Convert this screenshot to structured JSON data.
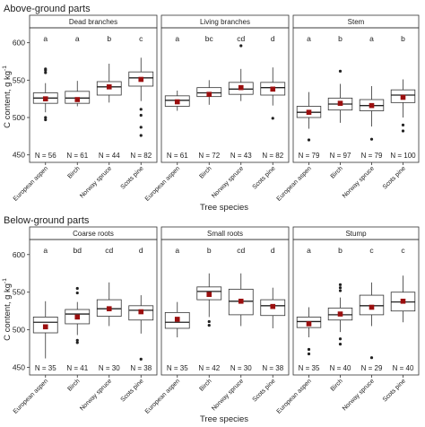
{
  "figure": {
    "y_tick_labels": [
      "450",
      "500",
      "550",
      "600"
    ],
    "y_sup": "-1"
  },
  "chart_data": [
    {
      "type": "box",
      "title": "Above-ground parts",
      "xlabel": "Tree species",
      "ylabel": "C content, g kg",
      "ylim": [
        440,
        620
      ],
      "yticks": [
        450,
        500,
        550,
        600
      ],
      "categories": [
        "European aspen",
        "Birch",
        "Norway spruce",
        "Scots pine"
      ],
      "legend": "none",
      "grid": false,
      "panels": [
        {
          "name": "Dead branches",
          "letters": [
            "a",
            "a",
            "b",
            "c"
          ],
          "n_labels": [
            "N = 56",
            "N = 61",
            "N = 44",
            "N = 82"
          ],
          "boxes": [
            {
              "low": 507,
              "q1": 519,
              "median": 526,
              "q3": 533,
              "high": 546,
              "mean": 525,
              "outliers": [
                560,
                563,
                565,
                497,
                500
              ]
            },
            {
              "low": 515,
              "q1": 519,
              "median": 526,
              "q3": 535,
              "high": 549,
              "mean": 524,
              "outliers": []
            },
            {
              "low": 520,
              "q1": 530,
              "median": 541,
              "q3": 548,
              "high": 572,
              "mean": 541,
              "outliers": []
            },
            {
              "low": 522,
              "q1": 542,
              "median": 553,
              "q3": 561,
              "high": 580,
              "mean": 551,
              "outliers": [
                511,
                503,
                487,
                476
              ]
            }
          ]
        },
        {
          "name": "Living branches",
          "letters": [
            "a",
            "bc",
            "cd",
            "d"
          ],
          "n_labels": [
            "N = 61",
            "N = 72",
            "N = 43",
            "N = 82"
          ],
          "boxes": [
            {
              "low": 509,
              "q1": 515,
              "median": 523,
              "q3": 529,
              "high": 536,
              "mean": 521,
              "outliers": []
            },
            {
              "low": 517,
              "q1": 528,
              "median": 533,
              "q3": 540,
              "high": 550,
              "mean": 531,
              "outliers": []
            },
            {
              "low": 522,
              "q1": 531,
              "median": 538,
              "q3": 547,
              "high": 565,
              "mean": 540,
              "outliers": [
                596
              ]
            },
            {
              "low": 516,
              "q1": 530,
              "median": 540,
              "q3": 547,
              "high": 567,
              "mean": 538,
              "outliers": [
                499
              ]
            }
          ]
        },
        {
          "name": "Stem",
          "letters": [
            "a",
            "b",
            "a",
            "b"
          ],
          "n_labels": [
            "N = 79",
            "N = 97",
            "N = 79",
            "N = 100"
          ],
          "boxes": [
            {
              "low": 485,
              "q1": 500,
              "median": 507,
              "q3": 515,
              "high": 534,
              "mean": 507,
              "outliers": [
                470
              ]
            },
            {
              "low": 493,
              "q1": 510,
              "median": 518,
              "q3": 526,
              "high": 545,
              "mean": 519,
              "outliers": [
                562
              ]
            },
            {
              "low": 488,
              "q1": 509,
              "median": 516,
              "q3": 524,
              "high": 542,
              "mean": 516,
              "outliers": [
                471
              ]
            },
            {
              "low": 500,
              "q1": 520,
              "median": 530,
              "q3": 537,
              "high": 551,
              "mean": 527,
              "outliers": [
                490,
                482
              ]
            }
          ]
        }
      ]
    },
    {
      "type": "box",
      "title": "Below-ground parts",
      "xlabel": "Tree species",
      "ylabel": "C content, g kg",
      "ylim": [
        440,
        620
      ],
      "yticks": [
        450,
        500,
        550,
        600
      ],
      "categories": [
        "European aspen",
        "Birch",
        "Norway spruce",
        "Scots pine"
      ],
      "legend": "none",
      "grid": false,
      "panels": [
        {
          "name": "Coarse roots",
          "letters": [
            "a",
            "bd",
            "cd",
            "d"
          ],
          "n_labels": [
            "N = 35",
            "N = 41",
            "N = 30",
            "N = 38"
          ],
          "boxes": [
            {
              "low": 462,
              "q1": 496,
              "median": 510,
              "q3": 517,
              "high": 538,
              "mean": 504,
              "outliers": []
            },
            {
              "low": 493,
              "q1": 508,
              "median": 521,
              "q3": 527,
              "high": 537,
              "mean": 517,
              "outliers": [
                555,
                549,
                486,
                483
              ]
            },
            {
              "low": 505,
              "q1": 518,
              "median": 528,
              "q3": 540,
              "high": 563,
              "mean": 528,
              "outliers": []
            },
            {
              "low": 495,
              "q1": 513,
              "median": 526,
              "q3": 532,
              "high": 546,
              "mean": 524,
              "outliers": [
                461
              ]
            }
          ]
        },
        {
          "name": "Small roots",
          "letters": [
            "a",
            "b",
            "cd",
            "d"
          ],
          "n_labels": [
            "N = 35",
            "N = 42",
            "N = 30",
            "N = 38"
          ],
          "boxes": [
            {
              "low": 490,
              "q1": 502,
              "median": 510,
              "q3": 523,
              "high": 537,
              "mean": 514,
              "outliers": []
            },
            {
              "low": 517,
              "q1": 540,
              "median": 551,
              "q3": 557,
              "high": 575,
              "mean": 547,
              "outliers": [
                511,
                506
              ]
            },
            {
              "low": 505,
              "q1": 520,
              "median": 538,
              "q3": 554,
              "high": 575,
              "mean": 538,
              "outliers": []
            },
            {
              "low": 502,
              "q1": 519,
              "median": 532,
              "q3": 540,
              "high": 556,
              "mean": 531,
              "outliers": []
            }
          ]
        },
        {
          "name": "Stump",
          "letters": [
            "a",
            "b",
            "c",
            "c"
          ],
          "n_labels": [
            "N = 35",
            "N = 40",
            "N = 29",
            "N = 40"
          ],
          "boxes": [
            {
              "low": 490,
              "q1": 503,
              "median": 511,
              "q3": 517,
              "high": 530,
              "mean": 508,
              "outliers": [
                474,
                468
              ]
            },
            {
              "low": 497,
              "q1": 513,
              "median": 520,
              "q3": 529,
              "high": 543,
              "mean": 521,
              "outliers": [
                560,
                556,
                552,
                488,
                481
              ]
            },
            {
              "low": 505,
              "q1": 520,
              "median": 532,
              "q3": 546,
              "high": 563,
              "mean": 530,
              "outliers": [
                463
              ]
            },
            {
              "low": 510,
              "q1": 525,
              "median": 537,
              "q3": 550,
              "high": 572,
              "mean": 538,
              "outliers": []
            }
          ]
        }
      ]
    }
  ]
}
